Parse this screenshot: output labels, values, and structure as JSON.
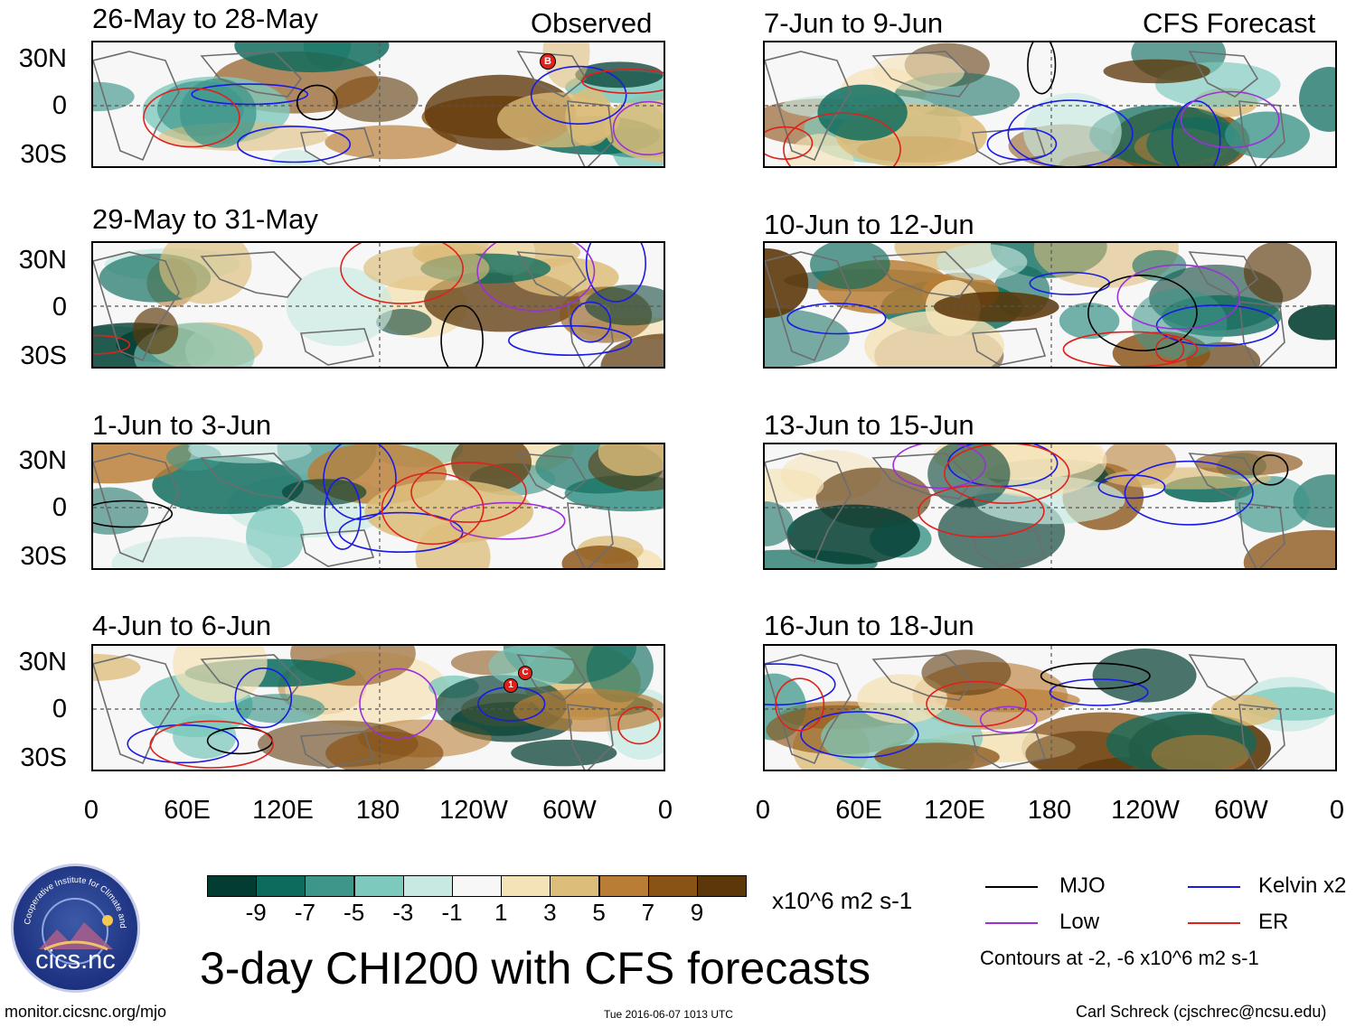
{
  "columns": {
    "left_label": "Observed",
    "right_label": "CFS Forecast"
  },
  "panels_left": [
    {
      "title": "26-May to 28-May"
    },
    {
      "title": "29-May to 31-May"
    },
    {
      "title": "1-Jun to 3-Jun"
    },
    {
      "title": "4-Jun to 6-Jun"
    }
  ],
  "panels_right": [
    {
      "title": "7-Jun to 9-Jun"
    },
    {
      "title": "10-Jun to 12-Jun"
    },
    {
      "title": "13-Jun to 15-Jun"
    },
    {
      "title": "16-Jun to 18-Jun"
    }
  ],
  "lat_labels": [
    "30N",
    "0",
    "30S"
  ],
  "lon_labels": [
    "0",
    "60E",
    "120E",
    "180",
    "120W",
    "60W",
    "0"
  ],
  "colorbar": {
    "colors": [
      "#033d31",
      "#0d6b5d",
      "#3e968a",
      "#7ec9bd",
      "#c7e9e2",
      "#f7f7f7",
      "#f5e3b8",
      "#ddbd7a",
      "#b97d35",
      "#8a5316",
      "#5c3709"
    ],
    "ticks": [
      "-9",
      "-7",
      "-5",
      "-3",
      "-1",
      "1",
      "3",
      "5",
      "7",
      "9"
    ],
    "units": "x10^6 m2 s-1"
  },
  "legend": {
    "mjo": {
      "label": "MJO",
      "color": "#000000"
    },
    "kelvin": {
      "label": "Kelvin x2",
      "color": "#1a1ae6"
    },
    "low": {
      "label": "Low",
      "color": "#9b30d9"
    },
    "er": {
      "label": "ER",
      "color": "#e0201b"
    },
    "contours_note": "Contours at -2, -6 x10^6 m2 s-1"
  },
  "main_title": "3-day CHI200 with CFS forecasts",
  "logo": {
    "text": "cics.nc",
    "ring_text": "Cooperative Institute for Climate and Satellites"
  },
  "footer": {
    "url": "monitor.cicsnc.org/mjo",
    "timestamp": "Tue 2016-06-07 1013 UTC",
    "credit": "Carl Schreck (cjschrec@ncsu.edu)"
  },
  "storm_markers": [
    {
      "panel": "26-May to 28-May",
      "label": "B"
    },
    {
      "panel": "4-Jun to 6-Jun",
      "label": "1"
    },
    {
      "panel": "4-Jun to 6-Jun",
      "label": "C"
    }
  ]
}
